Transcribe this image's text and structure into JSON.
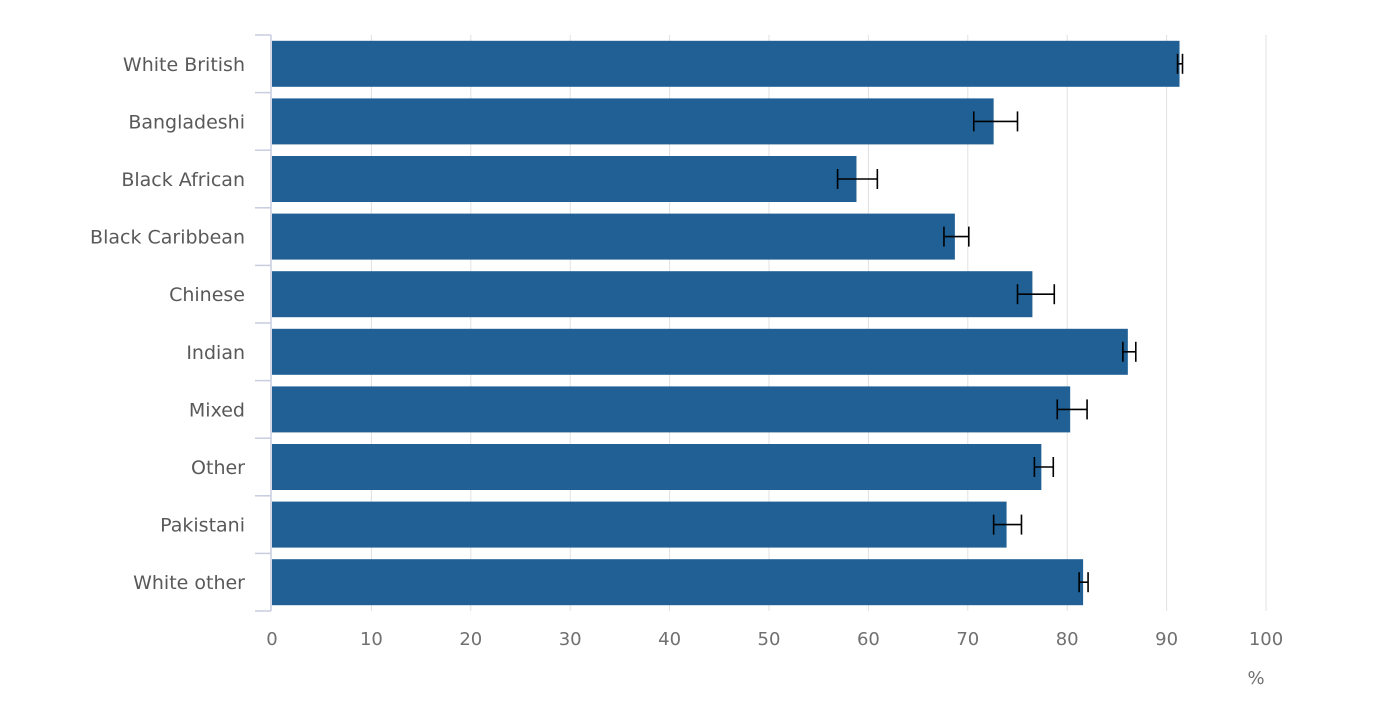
{
  "chart_data": {
    "type": "bar",
    "orientation": "horizontal",
    "categories": [
      "White British",
      "Bangladeshi",
      "Black African",
      "Black Caribbean",
      "Chinese",
      "Indian",
      "Mixed",
      "Other",
      "Pakistani",
      "White other"
    ],
    "values": [
      91.3,
      72.6,
      58.8,
      68.7,
      76.5,
      86.1,
      80.3,
      77.4,
      73.9,
      81.6
    ],
    "error_low": [
      91.1,
      70.6,
      56.9,
      67.6,
      75.0,
      85.6,
      79.0,
      76.7,
      72.6,
      81.2
    ],
    "error_high": [
      91.6,
      75.0,
      60.9,
      70.1,
      78.7,
      86.9,
      82.0,
      78.6,
      75.4,
      82.1
    ],
    "xlim": [
      0,
      100
    ],
    "xticks": [
      "0",
      "10",
      "20",
      "30",
      "40",
      "50",
      "60",
      "70",
      "80",
      "90",
      "100"
    ],
    "x_unit": "%",
    "title": "",
    "xlabel": "",
    "ylabel": "",
    "grid": "vertical",
    "bar_color": "#206095",
    "error_bar_color": "#000000",
    "grid_color": "#e0e0e0",
    "axis_color": "#c8cde0"
  }
}
